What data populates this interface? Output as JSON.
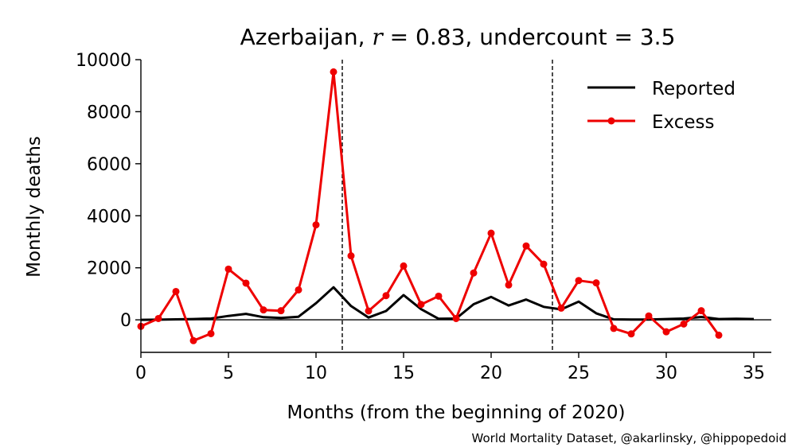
{
  "chart_data": {
    "type": "line",
    "title": {
      "country": "Azerbaijan",
      "r_symbol": "r",
      "r_value": "0.83",
      "undercount_label": "undercount",
      "undercount_value": "3.5"
    },
    "xlabel": "Months (from the beginning of 2020)",
    "ylabel": "Monthly deaths",
    "xlim": [
      0,
      36
    ],
    "ylim": [
      -1250,
      10000
    ],
    "x_ticks": [
      0,
      5,
      10,
      15,
      20,
      25,
      30,
      35
    ],
    "y_ticks": [
      0,
      2000,
      4000,
      6000,
      8000,
      10000
    ],
    "vlines": [
      11.5,
      23.5
    ],
    "hline": 0,
    "legend_position": "top-right",
    "grid": false,
    "series": [
      {
        "name": "Reported",
        "color": "#000000",
        "marker": "none",
        "x": [
          0,
          1,
          2,
          3,
          4,
          5,
          6,
          7,
          8,
          9,
          10,
          11,
          12,
          13,
          14,
          15,
          16,
          17,
          18,
          19,
          20,
          21,
          22,
          23,
          24,
          25,
          26,
          27,
          28,
          29,
          30,
          31,
          32,
          33,
          34,
          35
        ],
        "y": [
          0,
          5,
          20,
          30,
          50,
          150,
          230,
          100,
          70,
          120,
          640,
          1250,
          530,
          90,
          340,
          950,
          410,
          40,
          50,
          600,
          880,
          550,
          780,
          500,
          400,
          700,
          250,
          20,
          10,
          10,
          30,
          50,
          110,
          30,
          40,
          30
        ]
      },
      {
        "name": "Excess",
        "color": "#ee0000",
        "marker": "circle",
        "x": [
          0,
          1,
          2,
          3,
          4,
          5,
          6,
          7,
          8,
          9,
          10,
          11,
          12,
          13,
          14,
          15,
          16,
          17,
          18,
          19,
          20,
          21,
          22,
          23,
          24,
          25,
          26,
          27,
          28,
          29,
          30,
          31,
          32,
          33
        ],
        "y": [
          -250,
          50,
          1090,
          -800,
          -530,
          1950,
          1410,
          380,
          350,
          1150,
          3650,
          9530,
          2460,
          340,
          930,
          2070,
          590,
          910,
          50,
          1800,
          3330,
          1340,
          2840,
          2140,
          450,
          1510,
          1420,
          -330,
          -540,
          150,
          -460,
          -160,
          350,
          -590
        ]
      }
    ]
  },
  "credit": "World Mortality Dataset, @akarlinsky, @hippopedoid"
}
